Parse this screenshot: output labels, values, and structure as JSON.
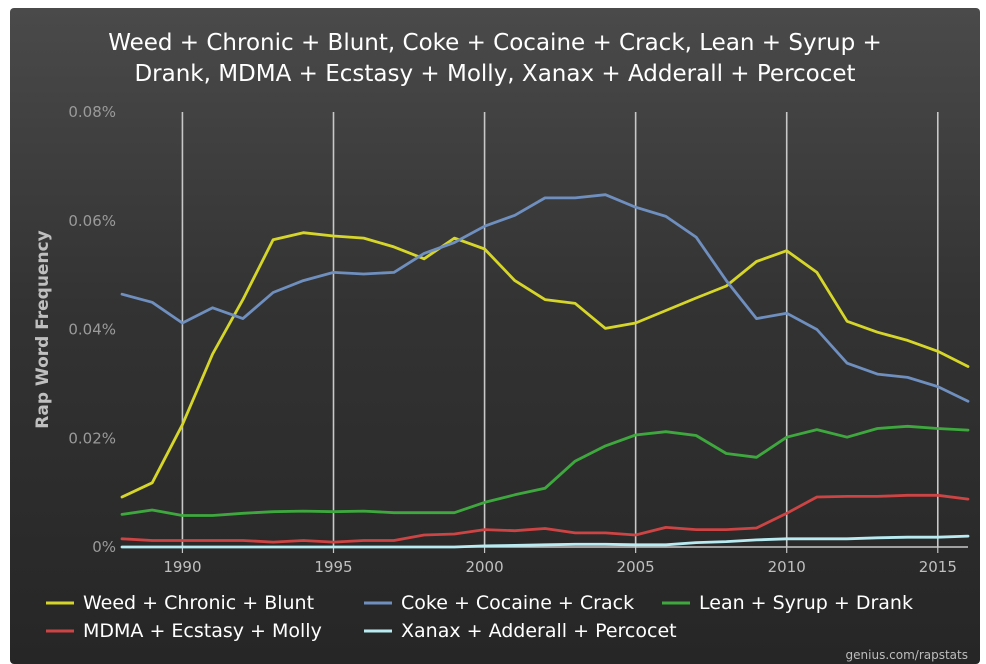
{
  "chart_data": {
    "type": "line",
    "title": "Weed + Chronic + Blunt, Coke + Cocaine + Crack, Lean + Syrup + Drank, MDMA + Ecstasy + Molly, Xanax + Adderall + Percocet",
    "title_lines": [
      "Weed + Chronic + Blunt, Coke + Cocaine + Crack, Lean + Syrup +",
      "Drank, MDMA + Ecstasy + Molly, Xanax + Adderall + Percocet"
    ],
    "xlabel": "",
    "ylabel": "Rap Word Frequency",
    "xlim": [
      1988,
      2016
    ],
    "ylim": [
      0,
      0.08
    ],
    "x_ticks": [
      1990,
      1995,
      2000,
      2005,
      2010,
      2015
    ],
    "y_ticks": [
      0,
      0.02,
      0.04,
      0.06,
      0.08
    ],
    "y_tick_labels": [
      "0%",
      "0.02%",
      "0.04%",
      "0.06%",
      "0.08%"
    ],
    "grid": "vertical",
    "legend_position": "bottom",
    "x": [
      1988,
      1989,
      1990,
      1991,
      1992,
      1993,
      1994,
      1995,
      1996,
      1997,
      1998,
      1999,
      2000,
      2001,
      2002,
      2003,
      2004,
      2005,
      2006,
      2007,
      2008,
      2009,
      2010,
      2011,
      2012,
      2013,
      2014,
      2015,
      2016
    ],
    "series": [
      {
        "name": "Weed + Chronic + Blunt",
        "color": "#d6d62a",
        "values": [
          0.0092,
          0.0118,
          0.0225,
          0.0355,
          0.0455,
          0.0565,
          0.0578,
          0.0572,
          0.0568,
          0.0552,
          0.053,
          0.0568,
          0.0548,
          0.049,
          0.0455,
          0.0448,
          0.0402,
          0.0412,
          0.0435,
          0.0458,
          0.048,
          0.0525,
          0.0545,
          0.0505,
          0.0415,
          0.0395,
          0.038,
          0.036,
          0.0332
        ]
      },
      {
        "name": "Coke + Cocaine + Crack",
        "color": "#6f8fbf",
        "values": [
          0.0465,
          0.045,
          0.0412,
          0.044,
          0.042,
          0.0468,
          0.049,
          0.0505,
          0.0502,
          0.0505,
          0.054,
          0.056,
          0.059,
          0.061,
          0.0642,
          0.0642,
          0.0648,
          0.0625,
          0.0608,
          0.057,
          0.049,
          0.042,
          0.043,
          0.04,
          0.0338,
          0.0318,
          0.0312,
          0.0295,
          0.0268
        ]
      },
      {
        "name": "Lean + Syrup + Drank",
        "color": "#3ea83e",
        "values": [
          0.006,
          0.0068,
          0.0058,
          0.0058,
          0.0062,
          0.0065,
          0.0066,
          0.0065,
          0.0066,
          0.0063,
          0.0063,
          0.0063,
          0.0082,
          0.0096,
          0.0108,
          0.0158,
          0.0186,
          0.0206,
          0.0212,
          0.0205,
          0.0172,
          0.0165,
          0.0202,
          0.0216,
          0.0202,
          0.0218,
          0.0222,
          0.0218,
          0.0215
        ]
      },
      {
        "name": "MDMA + Ecstasy + Molly",
        "color": "#cc4444",
        "values": [
          0.0015,
          0.0012,
          0.0012,
          0.0012,
          0.0012,
          0.0009,
          0.0012,
          0.0009,
          0.0012,
          0.0012,
          0.0022,
          0.0024,
          0.0032,
          0.003,
          0.0034,
          0.0026,
          0.0026,
          0.0022,
          0.0036,
          0.0032,
          0.0032,
          0.0035,
          0.0062,
          0.0092,
          0.0093,
          0.0093,
          0.0095,
          0.0095,
          0.0088
        ]
      },
      {
        "name": "Xanax + Adderall + Percocet",
        "color": "#b8ecf2",
        "values": [
          0,
          0,
          0,
          0,
          0,
          0,
          0,
          0,
          0,
          0,
          0,
          0,
          0.0002,
          0.0003,
          0.0004,
          0.0005,
          0.0005,
          0.0004,
          0.0004,
          0.0008,
          0.001,
          0.0013,
          0.0015,
          0.0015,
          0.0015,
          0.0017,
          0.0018,
          0.0018,
          0.002
        ]
      }
    ]
  },
  "credit": "genius.com/rapstats"
}
